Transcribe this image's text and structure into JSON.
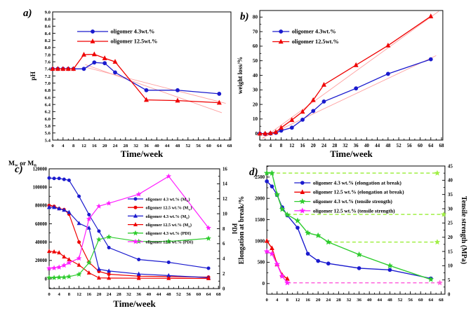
{
  "figure": {
    "background": "#ffffff",
    "text_color": "#000000",
    "legend_text_color": "#0d0d52",
    "panel_label_color": "#ee1100"
  },
  "chart_data": [
    {
      "id": "a",
      "type": "line",
      "panel_label": "a)",
      "xlabel": "Time/week",
      "xlim": [
        0,
        68.5
      ],
      "x_ticks": [
        0,
        4,
        8,
        12,
        16,
        20,
        24,
        28,
        32,
        36,
        40,
        44,
        48,
        52,
        56,
        60,
        64,
        68
      ],
      "x_minor": 2,
      "left_axis": {
        "label": "pH",
        "lim": [
          5.4,
          9.0
        ],
        "ticks": [
          5.4,
          5.6,
          5.8,
          6.0,
          6.2,
          6.4,
          6.6,
          6.8,
          7.0,
          7.2,
          7.4,
          7.6,
          7.8,
          8.0,
          8.2,
          8.4,
          8.6,
          8.8,
          9.0
        ],
        "decimals": 1,
        "minor": null
      },
      "right_axis": null,
      "series": [
        {
          "name": "oligomer 4.3wt.%",
          "color": "#1a1ace",
          "marker": "circle",
          "axis": "left",
          "x": [
            0,
            2,
            4,
            6,
            8,
            12,
            16,
            20,
            24,
            36,
            48,
            64
          ],
          "y": [
            7.4,
            7.4,
            7.4,
            7.4,
            7.4,
            7.4,
            7.58,
            7.56,
            7.3,
            6.8,
            6.8,
            6.7
          ]
        },
        {
          "name": "oligomer 12.5wt.%",
          "color": "#ef0000",
          "marker": "triangle",
          "axis": "left",
          "x": [
            0,
            2,
            4,
            6,
            8,
            12,
            16,
            20,
            24,
            36,
            48,
            64
          ],
          "y": [
            7.4,
            7.4,
            7.4,
            7.4,
            7.4,
            7.8,
            7.81,
            7.7,
            7.6,
            6.53,
            6.51,
            6.45
          ]
        }
      ],
      "fit_lines": [
        {
          "color": "#ffa0a0",
          "points": [
            [
              12.5,
              7.52
            ],
            [
              65,
              6.17
            ]
          ]
        },
        {
          "color": "#ffa0a0",
          "points": [
            [
              13,
              7.44
            ],
            [
              66.5,
              6.43
            ]
          ]
        }
      ],
      "dashed_lines": []
    },
    {
      "id": "b",
      "type": "line",
      "panel_label": "b)",
      "xlabel": "Time/week",
      "xlim": [
        0,
        68.5
      ],
      "x_ticks": [
        0,
        4,
        8,
        12,
        16,
        20,
        24,
        28,
        32,
        36,
        40,
        44,
        48,
        52,
        56,
        60,
        64,
        68
      ],
      "x_minor": 2,
      "left_axis": {
        "label": "weight loss/%",
        "lim": [
          -4.5,
          84.5
        ],
        "ticks": [
          0,
          10,
          20,
          30,
          40,
          50,
          60,
          70,
          80
        ],
        "decimals": 0,
        "minor": 5
      },
      "right_axis": null,
      "series": [
        {
          "name": "oligomer 4.3wt.%",
          "color": "#1a1ace",
          "marker": "circle",
          "axis": "left",
          "x": [
            0,
            2,
            4,
            6,
            8,
            12,
            16,
            20,
            24,
            36,
            48,
            64
          ],
          "y": [
            0,
            -0.3,
            0,
            0.5,
            2,
            4,
            9.5,
            15.5,
            22,
            31,
            41,
            51
          ]
        },
        {
          "name": "oligomer 12.5wt.%",
          "color": "#ef0000",
          "marker": "triangle",
          "axis": "left",
          "x": [
            0,
            2,
            4,
            6,
            8,
            12,
            16,
            20,
            24,
            36,
            48,
            64
          ],
          "y": [
            0,
            0,
            0.3,
            1,
            4,
            9.3,
            15,
            23,
            33.5,
            47,
            60.5,
            80.5
          ]
        }
      ],
      "fit_lines": [
        {
          "color": "#ffa0a0",
          "points": [
            [
              1,
              -3
            ],
            [
              66,
              53.5
            ]
          ]
        },
        {
          "color": "#ffa0a0",
          "points": [
            [
              1,
              -3.5
            ],
            [
              67,
              84
            ]
          ]
        }
      ],
      "dashed_lines": []
    },
    {
      "id": "c",
      "type": "line",
      "panel_label": "c)",
      "xlabel": "Time/week",
      "xlim": [
        0,
        68.5
      ],
      "x_ticks": [
        0,
        4,
        8,
        12,
        16,
        20,
        24,
        28,
        32,
        36,
        40,
        44,
        48,
        52,
        56,
        60,
        64,
        68
      ],
      "x_minor": 2,
      "left_axis": {
        "label": "Mw or Mn",
        "label_parts": [
          [
            "t",
            "M"
          ],
          [
            "sub",
            "w"
          ],
          [
            "t",
            " or M"
          ],
          [
            "sub",
            "n"
          ]
        ],
        "position": "top",
        "lim": [
          -10700,
          120000
        ],
        "ticks": [
          0,
          20000,
          40000,
          60000,
          80000,
          100000,
          120000
        ],
        "decimals": 0,
        "minor": 10000
      },
      "right_axis": {
        "label": "PDI",
        "lim": [
          0,
          16
        ],
        "ticks": [
          0,
          2,
          4,
          6,
          8,
          10,
          12,
          14,
          16
        ],
        "decimals": 0,
        "minor": 1
      },
      "series": [
        {
          "name": "oligomer 4.3 wt.% (Mw)",
          "name_parts": [
            [
              "t",
              "oligomer 4.3 wt.% (M"
            ],
            [
              "sub",
              "w"
            ],
            [
              "t",
              ")"
            ]
          ],
          "color": "#1a1ace",
          "marker": "circle",
          "axis": "left",
          "x": [
            0,
            2,
            4,
            6,
            8,
            12,
            16,
            20,
            24,
            36,
            48,
            64
          ],
          "y": [
            110000,
            109500,
            109500,
            108500,
            107500,
            90000,
            70000,
            52000,
            34000,
            21000,
            18000,
            11500
          ]
        },
        {
          "name": "oligomer 12.5 wt.% (Mw)",
          "name_parts": [
            [
              "t",
              "oligomer 12.5 wt.% (M"
            ],
            [
              "sub",
              "w"
            ],
            [
              "t",
              ")"
            ]
          ],
          "color": "#ef0000",
          "marker": "circle",
          "axis": "left",
          "x": [
            0,
            2,
            4,
            6,
            8,
            12,
            16,
            20,
            24,
            36,
            48,
            64
          ],
          "y": [
            80000,
            79000,
            76500,
            75500,
            70500,
            40000,
            18000,
            8000,
            5000,
            2800,
            2400,
            1800
          ]
        },
        {
          "name": "oligomer 4.3 wt.% (Mn)",
          "name_parts": [
            [
              "t",
              "oligomer 4.3 wt.% (M"
            ],
            [
              "sub",
              "n"
            ],
            [
              "t",
              ")"
            ]
          ],
          "color": "#1a1ace",
          "marker": "triangle",
          "axis": "left",
          "x": [
            0,
            2,
            4,
            6,
            8,
            12,
            16,
            20,
            24,
            36,
            48,
            64
          ],
          "y": [
            78000,
            78000,
            76500,
            75000,
            72500,
            60500,
            55500,
            10500,
            8500,
            5200,
            3500,
            1200
          ]
        },
        {
          "name": "oligomer 12.5 wt.% (Mn)",
          "name_parts": [
            [
              "t",
              "oligomer 12.5 wt.% (M"
            ],
            [
              "sub",
              "n"
            ],
            [
              "t",
              ")"
            ]
          ],
          "color": "#ef0000",
          "marker": "triangle",
          "axis": "left",
          "x": [
            0,
            2,
            4,
            6,
            8,
            12,
            16,
            20,
            24,
            36,
            48,
            64
          ],
          "y": [
            30000,
            29500,
            28500,
            24000,
            21000,
            15000,
            6500,
            1000,
            800,
            600,
            500,
            400
          ]
        },
        {
          "name": "oligomer 4.3 wt.% (PDI)",
          "color": "#2ecc2e",
          "marker": "star",
          "axis": "right",
          "x": [
            0,
            2,
            4,
            6,
            8,
            12,
            16,
            20,
            24,
            36,
            48,
            64
          ],
          "y": [
            1.45,
            1.45,
            1.5,
            1.5,
            1.6,
            1.9,
            3.45,
            6.55,
            6.9,
            6.3,
            6.3,
            6.7
          ]
        },
        {
          "name": "oligomer 12.5 wt.% (PDI)",
          "color": "#ff1fff",
          "marker": "star",
          "axis": "right",
          "x": [
            0,
            2,
            4,
            6,
            8,
            12,
            16,
            20,
            24,
            36,
            48,
            64
          ],
          "y": [
            2.7,
            2.75,
            2.85,
            3.1,
            3.45,
            4.05,
            9.3,
            11.0,
            11.4,
            12.6,
            15.0,
            8.1
          ]
        }
      ],
      "fit_lines": [],
      "dashed_lines": []
    },
    {
      "id": "d",
      "type": "line",
      "panel_label": "d)",
      "xlabel": "",
      "xlim": [
        0,
        69.5
      ],
      "x_ticks": [
        0,
        4,
        8,
        12,
        16,
        20,
        24,
        28,
        32,
        36,
        40,
        44,
        48,
        52,
        56,
        60,
        64,
        68
      ],
      "x_minor": 2,
      "left_axis": {
        "label": "Elongation at break/%",
        "lim": [
          -250,
          2760
        ],
        "ticks": [
          0,
          500,
          1000,
          1500,
          2000,
          2500
        ],
        "decimals": 0,
        "minor": 250
      },
      "right_axis": {
        "label": "Tensile strength (MPa)",
        "lim": [
          0,
          45
        ],
        "ticks": [
          0,
          5,
          10,
          15,
          20,
          25,
          30,
          35,
          40,
          45
        ],
        "decimals": 0,
        "minor": 2.5
      },
      "series": [
        {
          "name": "oligomer 4.3 wt.% (elongation at break)",
          "color": "#1a1ace",
          "marker": "circle",
          "axis": "left",
          "x": [
            0,
            2,
            4,
            6,
            8,
            12,
            16,
            20,
            24,
            36,
            48,
            64
          ],
          "y": [
            2400,
            2280,
            2080,
            1790,
            1600,
            1310,
            700,
            530,
            470,
            360,
            320,
            120
          ]
        },
        {
          "name": "oligomer 12.5 wt.% (elongation at break)",
          "color": "#ef0000",
          "marker": "triangle",
          "axis": "left",
          "x": [
            0,
            2,
            4,
            6,
            8
          ],
          "y": [
            1000,
            830,
            450,
            200,
            110
          ]
        },
        {
          "name": "oligomer 4.3 wt.% (tensile strength)",
          "color": "#2ecc2e",
          "marker": "star",
          "axis": "right",
          "x": [
            0,
            2,
            4,
            6,
            8,
            12,
            16,
            20,
            24,
            36,
            48,
            64
          ],
          "y": [
            42.5,
            42.5,
            35,
            29.8,
            27.9,
            25.8,
            21.5,
            20.6,
            18.3,
            13.9,
            10.0,
            5.2
          ]
        },
        {
          "name": "oligomer 12.5 wt.% (tensile strength)",
          "color": "#ff1fff",
          "marker": "star",
          "axis": "right",
          "x": [
            0,
            2,
            4,
            6,
            8
          ],
          "y": [
            15.0,
            14.2,
            10.5,
            6.3,
            4.0
          ]
        }
      ],
      "fit_lines": [],
      "dashed_lines": [
        {
          "color": "#a1ef46",
          "axis": "right",
          "y": 42.5,
          "x1": 1.5,
          "x2": 66.5
        },
        {
          "color": "#a1ef46",
          "axis": "right",
          "y": 28.0,
          "x1": 8,
          "x2": 69
        },
        {
          "color": "#a1ef46",
          "axis": "right",
          "y": 18.3,
          "x1": 24,
          "x2": 66.5
        },
        {
          "color": "#ff63dc",
          "axis": "right",
          "y": 4.0,
          "x1": 8,
          "x2": 67.5
        }
      ]
    }
  ]
}
